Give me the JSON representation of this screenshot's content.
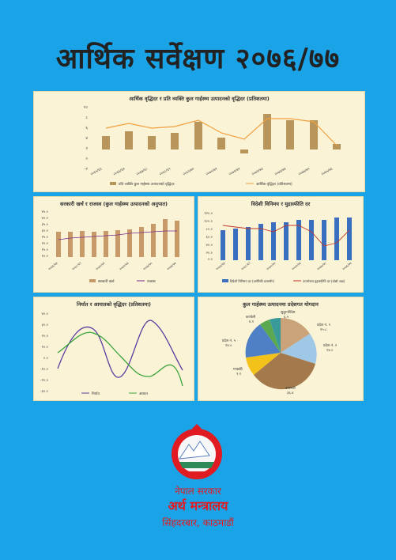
{
  "cover": {
    "title": "आर्थिक सर्वेक्षण २०७६/७७",
    "gov_name": "नेपाल सरकार",
    "ministry": "अर्थ मन्त्रालय",
    "address": "सिंहदरबार, काठमाडौं",
    "colors": {
      "background": "#1aa3e6",
      "panel": "#fbf3d6",
      "title": "#222222",
      "gov_text": "#e11b22"
    }
  },
  "charts": {
    "c1": {
      "title": "आर्थिक वृद्धिदर र प्रति व्यक्ति कुल गार्हस्थ्य उत्पादनको वृद्धिदर (प्रतिशतमा)",
      "yticks": [
        "१०",
        "८",
        "६",
        "४",
        "२",
        "०",
        "-२"
      ],
      "xticks": [
        "२०६५/६६",
        "२०६६/६७",
        "२०६७/६८",
        "२०६८/६९",
        "२०६९/७०",
        "२०७०/७१",
        "२०७१/७२",
        "२०७२/७३",
        "२०७३/७४",
        "२०७४/७५",
        "२०७५/७६",
        "२०७६/७७"
      ],
      "legend": [
        "प्रति व्यक्ति कुल गार्हस्थ्य उत्पादनको वृद्धिदर",
        "आर्थिक वृद्धिदर (प्रतिशतमा)"
      ]
    },
    "c2": {
      "title": "सरकारी खर्च र राजस्व (कुल गार्हस्थ्य उत्पादनको अनुपात)",
      "yticks": [
        "४५.०",
        "४०.०",
        "३५.०",
        "३०.०",
        "२५.०",
        "२०.०",
        "१५.०",
        "१०.०",
        "५.०",
        "०.०"
      ],
      "legend": [
        "सरकारी खर्च",
        "राजस्व"
      ]
    },
    "c3": {
      "title": "विदेशी विनिमय र मुद्रास्फीति दर",
      "yticks": [
        "१२०.०",
        "१००.०",
        "८०.०",
        "६०.०",
        "४०.०",
        "२०.०",
        "०.०"
      ],
      "legend": [
        "विदेशी विनिमय दर (अमेरिकी डलरसँग)",
        "उपभोक्ता मुद्रास्फीति दर (दोस्रो अक्ष)"
      ]
    },
    "c4": {
      "title": "निर्यात र आयातको वृद्धिदर (प्रतिशतमा)",
      "yticks": [
        "४०.०",
        "३०.०",
        "२०.०",
        "१०.०",
        "०.०",
        "-१०.०",
        "-२०.०",
        "-३०.०"
      ],
      "legend": [
        "निर्यात",
        "आयात"
      ]
    },
    "c5": {
      "title": "कुल गार्हस्थ्य उत्पादनमा प्रदेशगत योगदान",
      "labels": [
        {
          "name": "प्रदेश नं. १",
          "value": "१५.८"
        },
        {
          "name": "प्रदेश नं. २",
          "value": "१४.०"
        },
        {
          "name": "बागमती",
          "value": "३६.४"
        },
        {
          "name": "गण्डकी",
          "value": "९.१"
        },
        {
          "name": "प्रदेश नं. ५",
          "value": "१४.०"
        },
        {
          "name": "कर्णाली",
          "value": "४.१"
        },
        {
          "name": "सुदूरपश्चिम",
          "value": "६.५"
        }
      ]
    }
  }
}
